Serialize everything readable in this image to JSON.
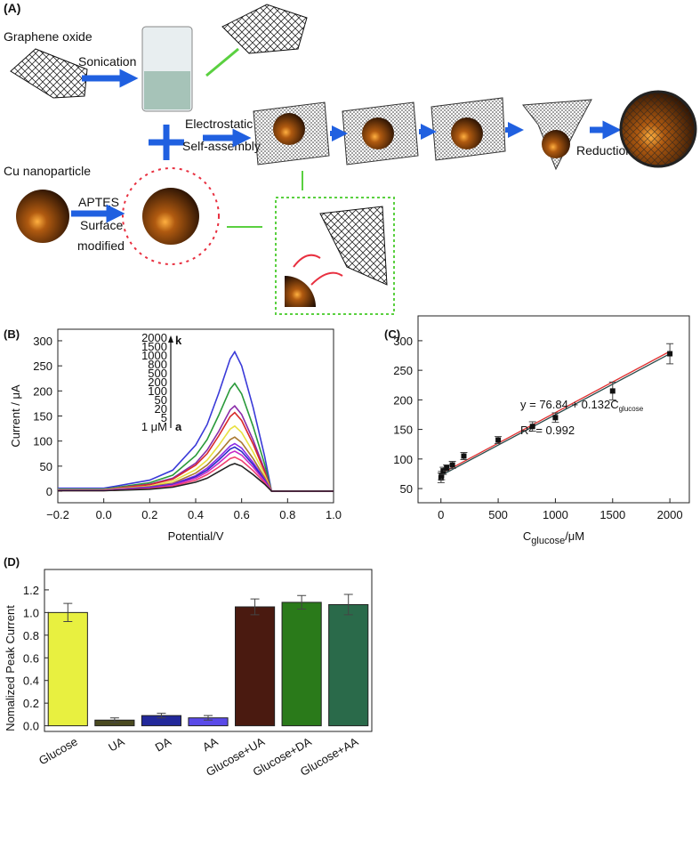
{
  "panel_a": {
    "label": "(A)",
    "graphene_oxide": "Graphene oxide",
    "sonication": "Sonication",
    "electrostatic": "Electrostatic",
    "self_assembly": "Self-assembly",
    "reduction": "Reduction",
    "cu_nanoparticle": "Cu nanoparticle",
    "aptes": "APTES",
    "surface": "Surface",
    "modified": "modified"
  },
  "chart_data": [
    {
      "type": "line",
      "label": "(B)",
      "x_label": "Potential/V",
      "y_label": "Current / μA",
      "x": [
        -0.2,
        0,
        0.2,
        0.3,
        0.4,
        0.45,
        0.5,
        0.55,
        0.57,
        0.6,
        0.65,
        0.7,
        0.73,
        1.0
      ],
      "series": [
        {
          "name": "2000",
          "color": "#3a3ad8",
          "values": [
            6,
            6,
            22,
            42,
            92,
            133,
            195,
            264,
            278,
            250,
            167,
            70,
            0,
            0
          ]
        },
        {
          "name": "1500",
          "color": "#2a9a3a",
          "values": [
            4,
            4,
            17,
            32,
            71,
            103,
            151,
            204,
            215,
            194,
            129,
            54,
            0,
            0
          ]
        },
        {
          "name": "1000",
          "color": "#8a2aa8",
          "values": [
            3,
            3,
            14,
            26,
            56,
            82,
            119,
            162,
            170,
            153,
            102,
            43,
            0,
            0
          ]
        },
        {
          "name": "800",
          "color": "#d82a2a",
          "values": [
            3,
            3,
            13,
            24,
            52,
            75,
            110,
            149,
            157,
            141,
            94,
            39,
            0,
            0
          ]
        },
        {
          "name": "500",
          "color": "#e8e040",
          "values": [
            3,
            3,
            10,
            20,
            43,
            62,
            91,
            124,
            130,
            117,
            78,
            33,
            0,
            0
          ]
        },
        {
          "name": "200",
          "color": "#a87830",
          "values": [
            2,
            2,
            9,
            16,
            36,
            52,
            76,
            103,
            108,
            97,
            65,
            27,
            0,
            0
          ]
        },
        {
          "name": "100",
          "color": "#8a2ae8",
          "values": [
            2,
            2,
            8,
            14,
            31,
            46,
            67,
            90,
            95,
            86,
            57,
            24,
            0,
            0
          ]
        },
        {
          "name": "50",
          "color": "#2a2ac8",
          "values": [
            2,
            2,
            7,
            13,
            29,
            42,
            62,
            84,
            88,
            79,
            53,
            22,
            0,
            0
          ]
        },
        {
          "name": "20",
          "color": "#c82ac8",
          "values": [
            2,
            2,
            6,
            12,
            26,
            38,
            56,
            76,
            80,
            72,
            48,
            20,
            0,
            0
          ]
        },
        {
          "name": "5",
          "color": "#f04070",
          "values": [
            1,
            1,
            5,
            10,
            22,
            33,
            48,
            65,
            68,
            61,
            41,
            17,
            0,
            0
          ]
        },
        {
          "name": "1 μM",
          "color": "#222222",
          "values": [
            1,
            1,
            4,
            8,
            18,
            26,
            39,
            52,
            55,
            50,
            33,
            14,
            0,
            0
          ]
        }
      ],
      "inset_top": "k",
      "inset_bottom": "a",
      "xlim": [
        -0.2,
        1.0
      ],
      "xticks": [
        {
          "value": -0.2,
          "label": "−0.2"
        },
        {
          "value": 0,
          "label": "0.0"
        },
        0.2,
        0.4,
        0.6,
        0.8,
        {
          "value": 1.0,
          "label": "1.0"
        }
      ],
      "ylim": [
        -23,
        323
      ],
      "yticks": [
        0,
        50,
        100,
        150,
        200,
        250,
        300
      ]
    },
    {
      "type": "scatter",
      "label": "(C)",
      "x_label": "C",
      "x_label_sub": "glucose",
      "x_label_suffix": "/μM",
      "x": [
        1,
        5,
        20,
        50,
        100,
        200,
        500,
        800,
        1000,
        1500,
        2000
      ],
      "values": [
        68,
        72,
        80,
        85,
        90,
        105,
        132,
        155,
        170,
        215,
        278
      ],
      "errors": [
        8,
        7,
        6,
        5,
        6,
        6,
        6,
        8,
        8,
        15,
        17
      ],
      "color": "#111111",
      "fit_lines": [
        {
          "color": "#e03030",
          "x": [
            0,
            2000
          ],
          "y": [
            75,
            282
          ]
        },
        {
          "color": "#2a4a4a",
          "x": [
            0,
            2000
          ],
          "y": [
            72,
            278
          ]
        }
      ],
      "equation": "y = 76.84 + 0.132C",
      "equation_sub": "glucose",
      "r2": "R² = 0.992",
      "xlim": [
        -200,
        2170
      ],
      "xticks": [
        0,
        500,
        1000,
        1500,
        2000
      ],
      "ylim": [
        26,
        342
      ],
      "yticks": [
        50,
        100,
        150,
        200,
        250,
        300
      ]
    },
    {
      "type": "bar",
      "label": "(D)",
      "y_label": "Nomalized Peak Current",
      "categories": [
        "Glucose",
        "UA",
        "DA",
        "AA",
        "Glucose+UA",
        "Glucose+DA",
        "Glucose+AA"
      ],
      "values": [
        1.0,
        0.05,
        0.09,
        0.07,
        1.05,
        1.09,
        1.07
      ],
      "errors": [
        0.08,
        0.02,
        0.02,
        0.02,
        0.07,
        0.06,
        0.09
      ],
      "colors": [
        "#e8f040",
        "#4a4a20",
        "#22289a",
        "#5a4ae8",
        "#4a1a10",
        "#2a7a1a",
        "#2a6a4a"
      ],
      "ylim": [
        -0.05,
        1.38
      ],
      "yticks": [
        {
          "value": 0,
          "label": "0.0"
        },
        0.2,
        0.4,
        0.6,
        0.8,
        {
          "value": 1.0,
          "label": "1.0"
        },
        1.2
      ]
    }
  ]
}
